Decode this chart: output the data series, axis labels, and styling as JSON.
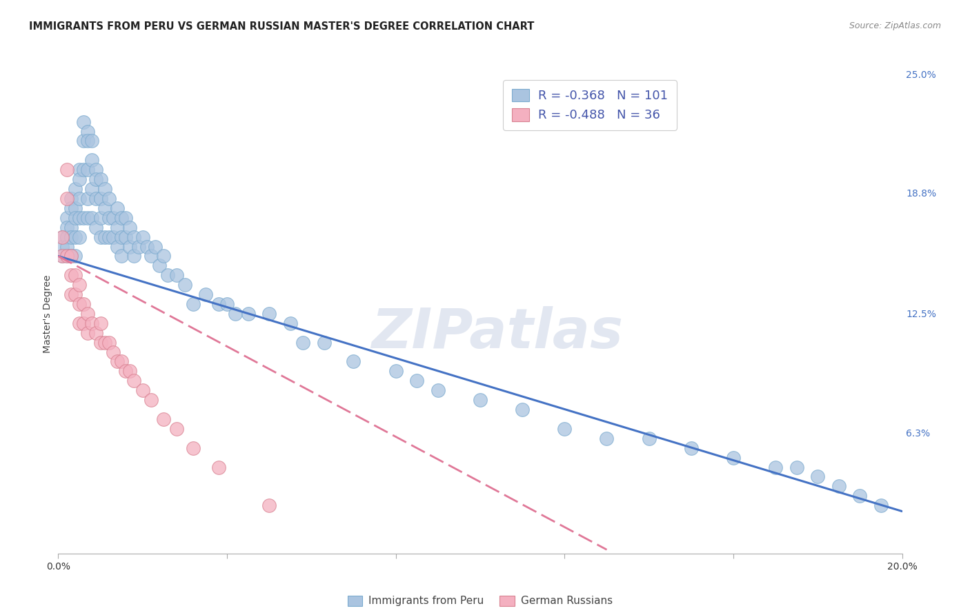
{
  "title": "IMMIGRANTS FROM PERU VS GERMAN RUSSIAN MASTER'S DEGREE CORRELATION CHART",
  "source": "Source: ZipAtlas.com",
  "ylabel": "Master's Degree",
  "xlim": [
    0.0,
    0.2
  ],
  "ylim": [
    0.0,
    0.25
  ],
  "xtick_vals": [
    0.0,
    0.04,
    0.08,
    0.12,
    0.16,
    0.2
  ],
  "xtick_labels": [
    "0.0%",
    "",
    "",
    "",
    "",
    "20.0%"
  ],
  "ytick_vals_right": [
    0.25,
    0.188,
    0.125,
    0.063,
    0.0
  ],
  "ytick_labels_right": [
    "25.0%",
    "18.8%",
    "12.5%",
    "6.3%",
    ""
  ],
  "watermark": "ZIPatlas",
  "series1": {
    "name": "Immigrants from Peru",
    "color": "#aac4e0",
    "edge_color": "#7aaace",
    "R": -0.368,
    "N": 101,
    "line_color": "#4472c4",
    "trendline_x": [
      0.0,
      0.2
    ],
    "trendline_y": [
      0.155,
      0.022
    ],
    "x": [
      0.001,
      0.001,
      0.001,
      0.002,
      0.002,
      0.002,
      0.002,
      0.002,
      0.003,
      0.003,
      0.003,
      0.003,
      0.003,
      0.004,
      0.004,
      0.004,
      0.004,
      0.004,
      0.005,
      0.005,
      0.005,
      0.005,
      0.005,
      0.006,
      0.006,
      0.006,
      0.006,
      0.007,
      0.007,
      0.007,
      0.007,
      0.007,
      0.008,
      0.008,
      0.008,
      0.008,
      0.009,
      0.009,
      0.009,
      0.009,
      0.01,
      0.01,
      0.01,
      0.01,
      0.011,
      0.011,
      0.011,
      0.012,
      0.012,
      0.012,
      0.013,
      0.013,
      0.014,
      0.014,
      0.014,
      0.015,
      0.015,
      0.015,
      0.016,
      0.016,
      0.017,
      0.017,
      0.018,
      0.018,
      0.019,
      0.02,
      0.021,
      0.022,
      0.023,
      0.024,
      0.025,
      0.026,
      0.028,
      0.03,
      0.032,
      0.035,
      0.038,
      0.04,
      0.042,
      0.045,
      0.05,
      0.055,
      0.058,
      0.063,
      0.07,
      0.08,
      0.085,
      0.09,
      0.1,
      0.11,
      0.12,
      0.13,
      0.14,
      0.15,
      0.16,
      0.17,
      0.175,
      0.18,
      0.185,
      0.19,
      0.195
    ],
    "y": [
      0.165,
      0.16,
      0.155,
      0.175,
      0.17,
      0.165,
      0.16,
      0.155,
      0.185,
      0.18,
      0.17,
      0.165,
      0.155,
      0.19,
      0.18,
      0.175,
      0.165,
      0.155,
      0.2,
      0.195,
      0.185,
      0.175,
      0.165,
      0.225,
      0.215,
      0.2,
      0.175,
      0.22,
      0.215,
      0.2,
      0.185,
      0.175,
      0.215,
      0.205,
      0.19,
      0.175,
      0.2,
      0.195,
      0.185,
      0.17,
      0.195,
      0.185,
      0.175,
      0.165,
      0.19,
      0.18,
      0.165,
      0.185,
      0.175,
      0.165,
      0.175,
      0.165,
      0.18,
      0.17,
      0.16,
      0.175,
      0.165,
      0.155,
      0.175,
      0.165,
      0.17,
      0.16,
      0.165,
      0.155,
      0.16,
      0.165,
      0.16,
      0.155,
      0.16,
      0.15,
      0.155,
      0.145,
      0.145,
      0.14,
      0.13,
      0.135,
      0.13,
      0.13,
      0.125,
      0.125,
      0.125,
      0.12,
      0.11,
      0.11,
      0.1,
      0.095,
      0.09,
      0.085,
      0.08,
      0.075,
      0.065,
      0.06,
      0.06,
      0.055,
      0.05,
      0.045,
      0.045,
      0.04,
      0.035,
      0.03,
      0.025
    ]
  },
  "series2": {
    "name": "German Russians",
    "color": "#f4b0c0",
    "edge_color": "#d88090",
    "R": -0.488,
    "N": 36,
    "line_color": "#e07898",
    "trendline_x": [
      0.0,
      0.13
    ],
    "trendline_y": [
      0.155,
      0.002
    ],
    "x": [
      0.001,
      0.001,
      0.002,
      0.002,
      0.002,
      0.003,
      0.003,
      0.003,
      0.004,
      0.004,
      0.005,
      0.005,
      0.005,
      0.006,
      0.006,
      0.007,
      0.007,
      0.008,
      0.009,
      0.01,
      0.01,
      0.011,
      0.012,
      0.013,
      0.014,
      0.015,
      0.016,
      0.017,
      0.018,
      0.02,
      0.022,
      0.025,
      0.028,
      0.032,
      0.038,
      0.05
    ],
    "y": [
      0.165,
      0.155,
      0.2,
      0.185,
      0.155,
      0.155,
      0.145,
      0.135,
      0.145,
      0.135,
      0.14,
      0.13,
      0.12,
      0.13,
      0.12,
      0.125,
      0.115,
      0.12,
      0.115,
      0.12,
      0.11,
      0.11,
      0.11,
      0.105,
      0.1,
      0.1,
      0.095,
      0.095,
      0.09,
      0.085,
      0.08,
      0.07,
      0.065,
      0.055,
      0.045,
      0.025
    ]
  },
  "background_color": "#ffffff",
  "grid_color": "#cccccc",
  "title_color": "#222222",
  "right_label_color": "#4472c4",
  "legend_text_color": "#4455aa"
}
